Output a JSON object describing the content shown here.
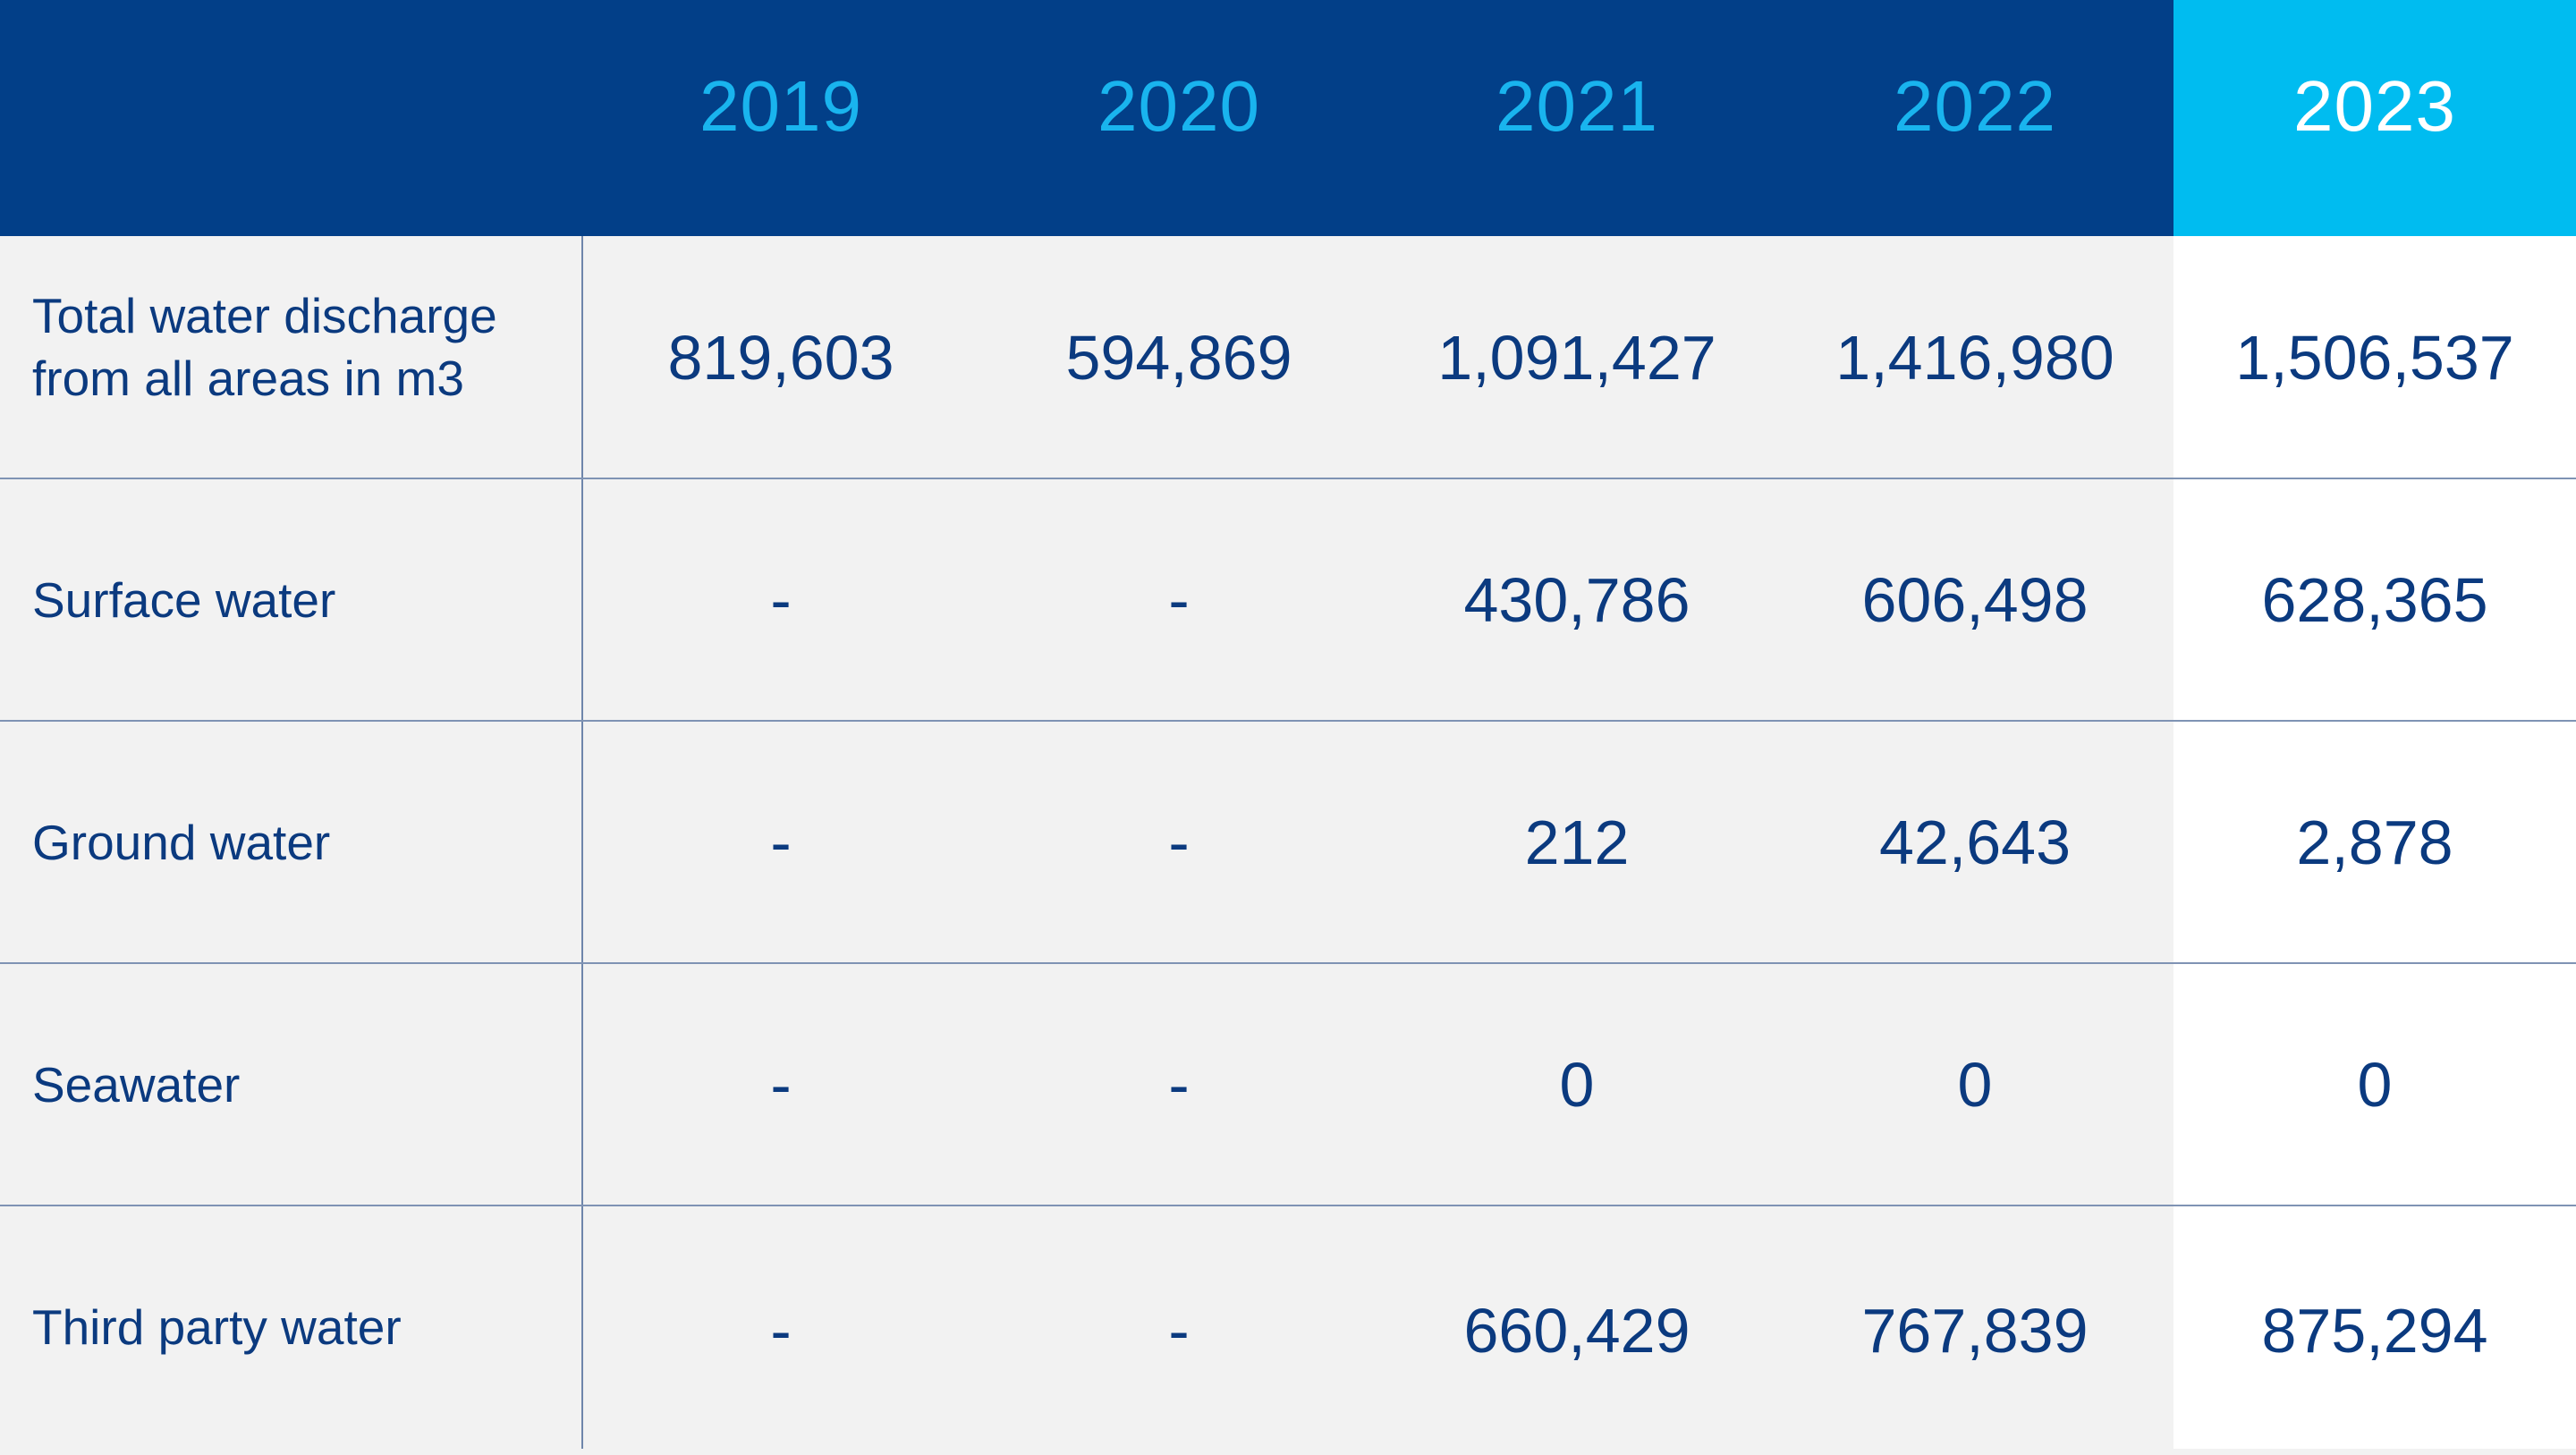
{
  "chart_data": {
    "type": "table",
    "columns": [
      "2019",
      "2020",
      "2021",
      "2022",
      "2023"
    ],
    "highlight_column": "2023",
    "rows": [
      {
        "label": "Total water discharge from all areas in m3",
        "values": [
          "819,603",
          "594,869",
          "1,091,427",
          "1,416,980",
          "1,506,537"
        ]
      },
      {
        "label": "Surface water",
        "values": [
          "-",
          "-",
          "430,786",
          "606,498",
          "628,365"
        ]
      },
      {
        "label": "Ground water",
        "values": [
          "-",
          "-",
          "212",
          "42,643",
          "2,878"
        ]
      },
      {
        "label": "Seawater",
        "values": [
          "-",
          "-",
          "0",
          "0",
          "0"
        ]
      },
      {
        "label": "Third party water",
        "values": [
          "-",
          "-",
          "660,429",
          "767,839",
          "875,294"
        ]
      }
    ]
  },
  "colors": {
    "header_background": "#023f88",
    "header_text": "#19b4ee",
    "highlight_header_background": "#00bcf0",
    "highlight_header_text": "#ffffff",
    "body_background": "#f2f2f2",
    "highlight_column_background": "#ffffff",
    "body_text": "#0b3a7f",
    "grid_lines": "#7f93b4"
  }
}
